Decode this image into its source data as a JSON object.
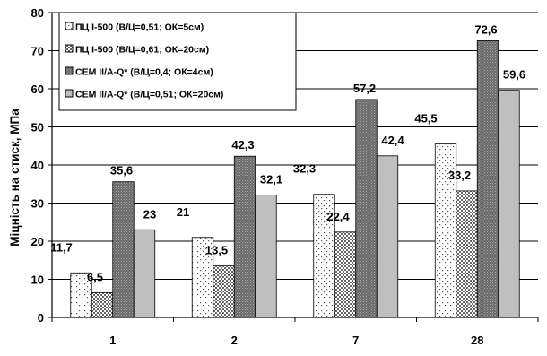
{
  "chart_data": {
    "type": "bar",
    "categories": [
      "1",
      "2",
      "7",
      "28"
    ],
    "ylabel": "Міцність на стиск, МПа",
    "xlabel": "",
    "ylim": [
      0,
      80
    ],
    "yticks": [
      0,
      10,
      20,
      30,
      40,
      50,
      60,
      70,
      80
    ],
    "grid": true,
    "legend_position": "top-left",
    "series": [
      {
        "name": "ПЦ I-500 (В/Ц=0,51; ОК=5см)",
        "values": [
          11.7,
          21,
          32.3,
          45.5
        ],
        "labels": [
          "11,7",
          "21",
          "32,3",
          "45,5"
        ],
        "pattern": "dots-white",
        "color": "#ffffff"
      },
      {
        "name": "ПЦ I-500 (В/Ц=0,61; ОК=20см)",
        "values": [
          6.5,
          13.5,
          22.4,
          33.2
        ],
        "labels": [
          "6,5",
          "13,5",
          "22,4",
          "33,2"
        ],
        "pattern": "checker",
        "color": "#d8d8d8"
      },
      {
        "name": "CEM II/A-Q* (В/Ц=0,4; ОК=4см)",
        "values": [
          35.6,
          42.3,
          57.2,
          72.6
        ],
        "labels": [
          "35,6",
          "42,3",
          "57,2",
          "72,6"
        ],
        "pattern": "dense-gray",
        "color": "#808080"
      },
      {
        "name": "CEM II/A-Q* (В/Ц=0,51; ОК=20см)",
        "values": [
          23,
          32.1,
          42.4,
          59.6
        ],
        "labels": [
          "23",
          "32,1",
          "42,4",
          "59,6"
        ],
        "pattern": "solid",
        "color": "#bfbfbf"
      }
    ]
  }
}
